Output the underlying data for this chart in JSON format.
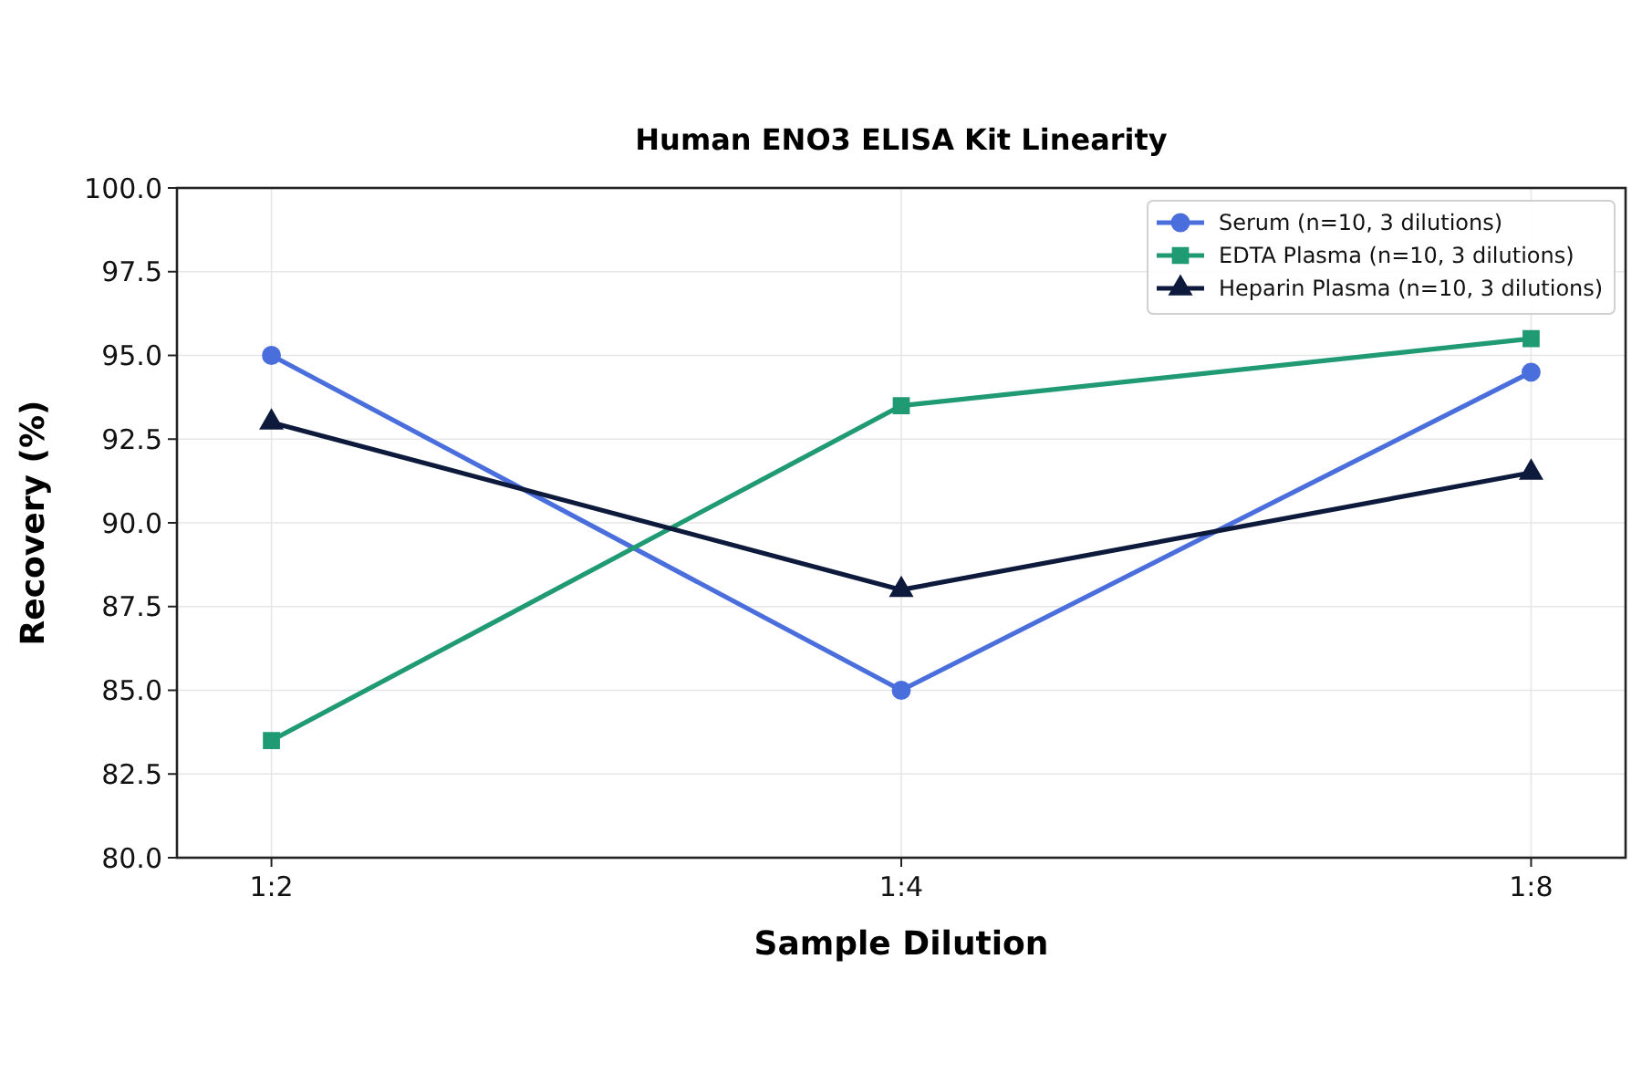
{
  "chart_data": {
    "type": "line",
    "title": "Human ENO3 ELISA Kit Linearity",
    "xlabel": "Sample Dilution",
    "ylabel": "Recovery (%)",
    "categories": [
      "1:2",
      "1:4",
      "1:8"
    ],
    "series": [
      {
        "name": "Serum (n=10, 3 dilutions)",
        "color": "#4a6fdc",
        "marker": "circle",
        "values": [
          95.0,
          85.0,
          94.5
        ]
      },
      {
        "name": "EDTA Plasma (n=10, 3 dilutions)",
        "color": "#1f9a72",
        "marker": "square",
        "values": [
          83.5,
          93.5,
          95.5
        ]
      },
      {
        "name": "Heparin Plasma (n=10, 3 dilutions)",
        "color": "#0d1a3c",
        "marker": "triangle",
        "values": [
          93.0,
          88.0,
          91.5
        ]
      }
    ],
    "ylim": [
      80,
      100
    ],
    "yticks": [
      {
        "value": 80,
        "label": "80.0"
      },
      {
        "value": 82.5,
        "label": "82.5"
      },
      {
        "value": 85,
        "label": "85.0"
      },
      {
        "value": 87.5,
        "label": "87.5"
      },
      {
        "value": 90,
        "label": "90.0"
      },
      {
        "value": 92.5,
        "label": "92.5"
      },
      {
        "value": 95,
        "label": "95.0"
      },
      {
        "value": 97.5,
        "label": "97.5"
      },
      {
        "value": 100,
        "label": "100.0"
      }
    ],
    "grid": true,
    "legend": "top right",
    "line_style": "solid"
  }
}
